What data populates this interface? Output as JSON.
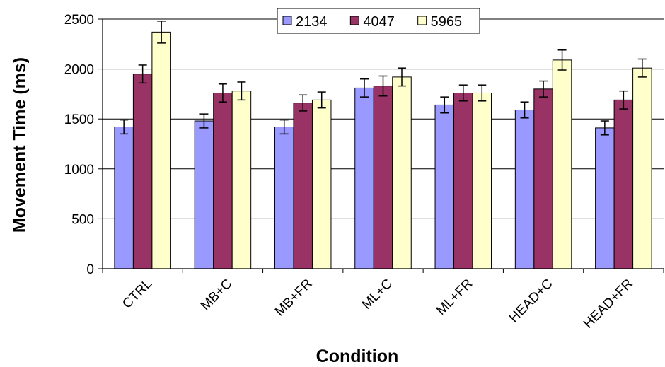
{
  "chart_data": {
    "type": "bar",
    "title": "",
    "xlabel": "Condition",
    "ylabel": "Movement Time (ms)",
    "ylim": [
      0,
      2500
    ],
    "yticks": [
      0,
      500,
      1000,
      1500,
      2000,
      2500
    ],
    "grid": true,
    "legend_position": "top-center",
    "categories": [
      "CTRL",
      "MB+C",
      "MB+FR",
      "ML+C",
      "ML+FR",
      "HEAD+C",
      "HEAD+FR"
    ],
    "series": [
      {
        "name": "2134",
        "color": "#9999ff",
        "values": [
          1420,
          1480,
          1420,
          1810,
          1640,
          1590,
          1410
        ],
        "errors": [
          70,
          70,
          70,
          90,
          80,
          80,
          70
        ]
      },
      {
        "name": "4047",
        "color": "#993366",
        "values": [
          1950,
          1760,
          1660,
          1830,
          1760,
          1800,
          1690
        ],
        "errors": [
          90,
          90,
          80,
          100,
          80,
          80,
          90
        ]
      },
      {
        "name": "5965",
        "color": "#ffffcc",
        "values": [
          2370,
          1780,
          1690,
          1920,
          1760,
          2090,
          2010
        ],
        "errors": [
          110,
          90,
          80,
          90,
          80,
          100,
          90
        ]
      }
    ]
  }
}
